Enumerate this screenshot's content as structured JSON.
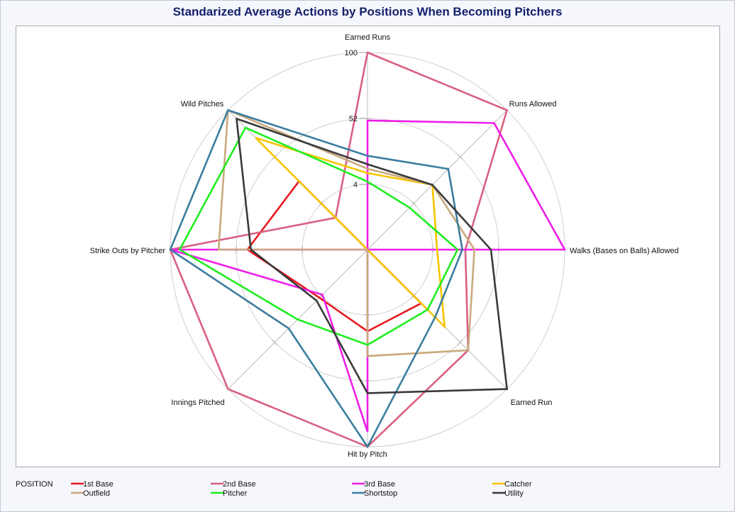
{
  "chart_data": {
    "type": "radar",
    "title": "Standarized Average Actions by Positions When Becoming Pitchers",
    "axes": [
      "Earned Runs",
      "Runs Allowed",
      "Walks (Bases on Balls) Allowed",
      "Earned Run",
      "Hit by Pitch",
      "Innings Pitched",
      "Strike Outs by Pitcher",
      "Wild Pitches"
    ],
    "radial_ticks": [
      "4",
      "52",
      "100"
    ],
    "legend_title": "POSITION",
    "series": [
      {
        "name": "1st Base",
        "color": "#e8191e",
        "values": [
          0,
          0,
          0,
          38.5,
          41.4,
          34.5,
          60.9,
          49.1
        ]
      },
      {
        "name": "2nd Base",
        "color": "#d96080",
        "values": [
          100,
          100,
          49.6,
          72.2,
          100,
          100,
          100,
          22.9
        ]
      },
      {
        "name": "3rd Base",
        "color": "#ee1ee8",
        "values": [
          65.5,
          90.8,
          100,
          0,
          92.4,
          32.3,
          100,
          0
        ]
      },
      {
        "name": "Catcher",
        "color": "#f5c400",
        "values": [
          38.8,
          46.5,
          35.3,
          55.3,
          0,
          0,
          0,
          80.2
        ]
      },
      {
        "name": "Outfield",
        "color": "#c9a97c",
        "values": [
          41,
          46.5,
          54.2,
          72.2,
          54,
          0,
          75.5,
          100
        ]
      },
      {
        "name": "Pitcher",
        "color": "#1eee1e",
        "values": [
          34.5,
          30.1,
          45.7,
          43.1,
          48.3,
          50.1,
          95.2,
          87.5
        ]
      },
      {
        "name": "Shortstop",
        "color": "#3a7ea0",
        "values": [
          47.6,
          57.9,
          48.1,
          48.5,
          100,
          56.5,
          100,
          100
        ]
      },
      {
        "name": "Utility",
        "color": "#3a3a3a",
        "values": [
          43.3,
          46.5,
          62.6,
          100,
          72.8,
          36.6,
          59.1,
          93.9
        ]
      }
    ],
    "grid": true
  }
}
